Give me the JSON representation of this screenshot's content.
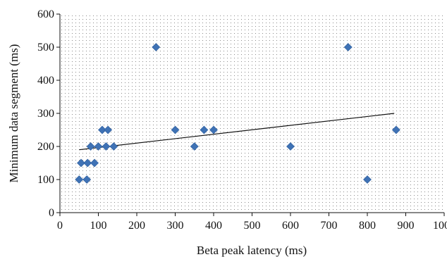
{
  "chart_data": {
    "type": "scatter",
    "xlabel": "Beta peak latency (ms)",
    "ylabel": "Minimum data segment (ms)",
    "xlim": [
      0,
      1000
    ],
    "ylim": [
      0,
      600
    ],
    "x_ticks": [
      "0",
      "100",
      "200",
      "300",
      "400",
      "500",
      "600",
      "700",
      "800",
      "900",
      "1000"
    ],
    "y_ticks": [
      "0",
      "100",
      "200",
      "300",
      "400",
      "500",
      "600"
    ],
    "grid": "dotted",
    "marker": "diamond",
    "marker_color": "#3f72b5",
    "line_color": "#111111",
    "series": [
      {
        "points": [
          {
            "x": 50,
            "y": 100
          },
          {
            "x": 70,
            "y": 100
          },
          {
            "x": 55,
            "y": 150
          },
          {
            "x": 72,
            "y": 150
          },
          {
            "x": 90,
            "y": 150
          },
          {
            "x": 80,
            "y": 200
          },
          {
            "x": 100,
            "y": 200
          },
          {
            "x": 120,
            "y": 200
          },
          {
            "x": 140,
            "y": 200
          },
          {
            "x": 110,
            "y": 250
          },
          {
            "x": 125,
            "y": 250
          },
          {
            "x": 250,
            "y": 500
          },
          {
            "x": 300,
            "y": 250
          },
          {
            "x": 350,
            "y": 200
          },
          {
            "x": 375,
            "y": 250
          },
          {
            "x": 400,
            "y": 250
          },
          {
            "x": 600,
            "y": 200
          },
          {
            "x": 750,
            "y": 500
          },
          {
            "x": 800,
            "y": 100
          },
          {
            "x": 875,
            "y": 250
          }
        ]
      }
    ],
    "trendline": {
      "x": [
        50,
        870
      ],
      "y": [
        190,
        300
      ]
    }
  }
}
